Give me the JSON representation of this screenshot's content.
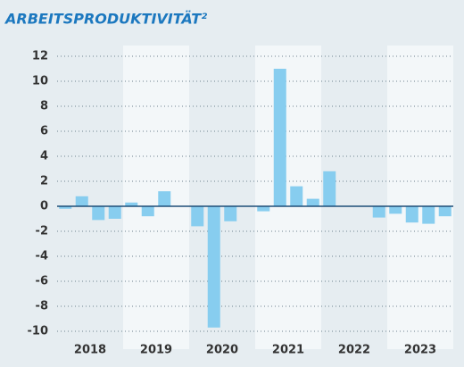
{
  "chart_data": {
    "type": "bar",
    "title": "ARBEITSPRODUKTIVITÄT²",
    "categories": [
      "2018",
      "2019",
      "2020",
      "2021",
      "2022",
      "2023"
    ],
    "values": [
      [
        -0.2,
        0.8,
        -1.1,
        -1.0
      ],
      [
        0.3,
        -0.8,
        1.2,
        null
      ],
      [
        -1.6,
        -9.7,
        -1.2,
        null
      ],
      [
        -0.4,
        11.0,
        1.6,
        0.6
      ],
      [
        2.8,
        null,
        null,
        -0.9
      ],
      [
        -0.6,
        -1.3,
        -1.4,
        -0.8
      ]
    ],
    "color": "#87cdef",
    "ylim": [
      -10,
      12
    ],
    "yticks": [
      -10,
      -8,
      -6,
      -4,
      -2,
      0,
      2,
      4,
      6,
      8,
      10,
      12
    ],
    "grid": true
  }
}
